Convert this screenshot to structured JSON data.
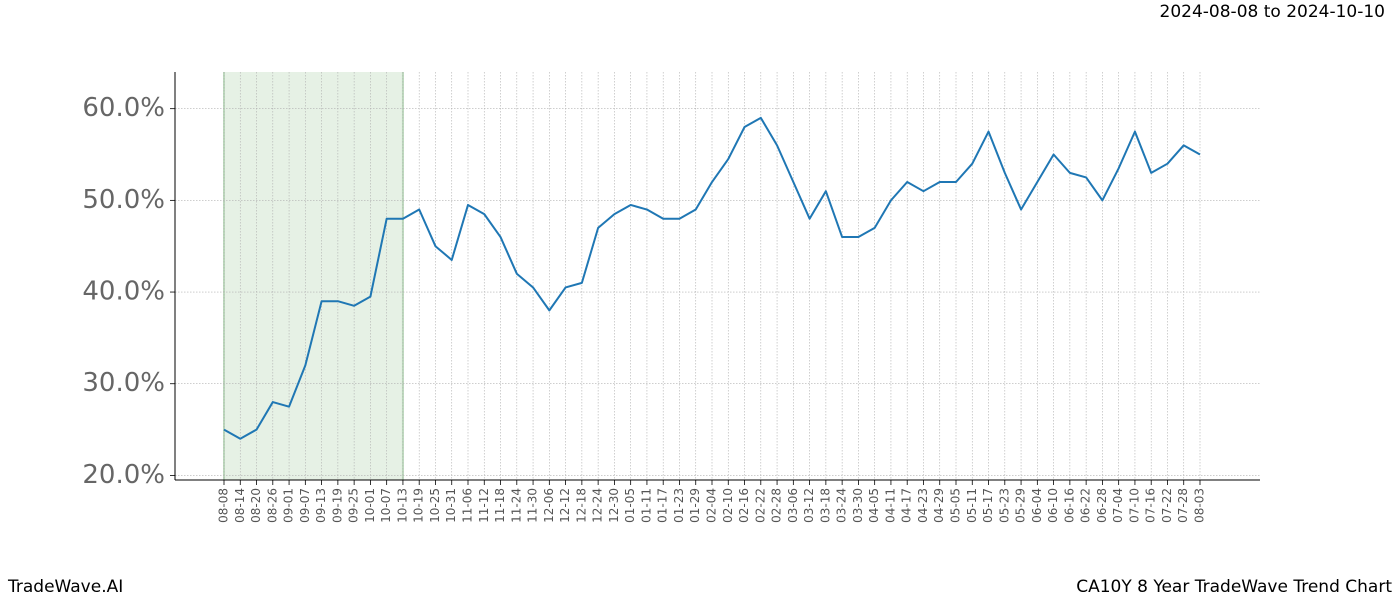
{
  "header": {
    "date_range": "2024-08-08 to 2024-10-10"
  },
  "footer": {
    "brand": "TradeWave.AI",
    "chart_name": "CA10Y 8 Year TradeWave Trend Chart"
  },
  "chart_data": {
    "type": "line",
    "categories": [
      "08-08",
      "08-14",
      "08-20",
      "08-26",
      "09-01",
      "09-07",
      "09-13",
      "09-19",
      "09-25",
      "10-01",
      "10-07",
      "10-13",
      "10-19",
      "10-25",
      "10-31",
      "11-06",
      "11-12",
      "11-18",
      "11-24",
      "11-30",
      "12-06",
      "12-12",
      "12-18",
      "12-24",
      "12-30",
      "01-05",
      "01-11",
      "01-17",
      "01-23",
      "01-29",
      "02-04",
      "02-10",
      "02-16",
      "02-22",
      "02-28",
      "03-06",
      "03-12",
      "03-18",
      "03-24",
      "03-30",
      "04-05",
      "04-11",
      "04-17",
      "04-23",
      "04-29",
      "05-05",
      "05-11",
      "05-17",
      "05-23",
      "05-29",
      "06-04",
      "06-10",
      "06-16",
      "06-22",
      "06-28",
      "07-04",
      "07-10",
      "07-16",
      "07-22",
      "07-28",
      "08-03"
    ],
    "series": [
      {
        "color": "#1f77b4",
        "values": [
          25,
          24,
          25,
          28,
          27.5,
          32,
          39,
          39,
          38.5,
          39.5,
          48,
          48,
          49,
          45,
          43.5,
          49.5,
          48.5,
          46,
          42,
          40.5,
          38,
          40.5,
          41,
          47,
          48.5,
          49.5,
          49,
          48,
          48,
          49,
          52,
          54.5,
          58,
          59,
          56,
          52,
          48,
          51,
          46,
          46,
          47,
          50,
          52,
          51,
          52,
          52,
          54,
          57.5,
          53,
          49,
          52,
          55,
          53,
          52.5,
          50,
          53.5,
          57.5,
          53,
          54,
          56,
          55
        ]
      }
    ],
    "ylim": [
      19.5,
      64
    ],
    "yticks": [
      {
        "value": 20,
        "label": "20.0%"
      },
      {
        "value": 30,
        "label": "30.0%"
      },
      {
        "value": 40,
        "label": "40.0%"
      },
      {
        "value": 50,
        "label": "50.0%"
      },
      {
        "value": 60,
        "label": "60.0%"
      }
    ],
    "grid": true,
    "shade": {
      "from": "08-08",
      "to": "10-13",
      "color": "#d5e8d4"
    }
  }
}
